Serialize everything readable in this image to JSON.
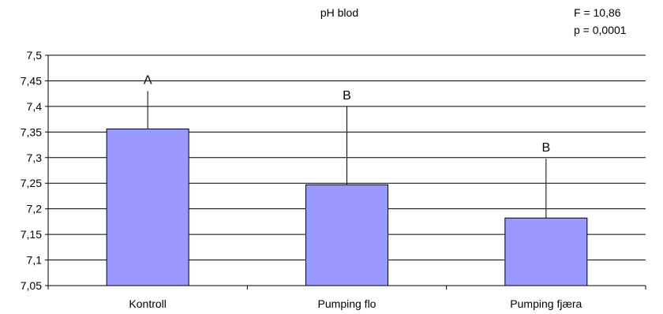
{
  "chart_data": {
    "type": "bar",
    "title": "pH blod",
    "categories": [
      "Kontroll",
      "Pumping flo",
      "Pumping fjæra"
    ],
    "values": [
      7.356,
      7.247,
      7.182
    ],
    "error_upper": [
      7.43,
      7.4,
      7.298
    ],
    "group_letters": [
      "A",
      "B",
      "B"
    ],
    "ylim": [
      7.05,
      7.5
    ],
    "yticks": [
      "7,05",
      "7,1",
      "7,15",
      "7,2",
      "7,25",
      "7,3",
      "7,35",
      "7,4",
      "7,45",
      "7,5"
    ],
    "ytick_values": [
      7.05,
      7.1,
      7.15,
      7.2,
      7.25,
      7.3,
      7.35,
      7.4,
      7.45,
      7.5
    ],
    "grid": true,
    "bar_color": "#9999ff",
    "annotations": {
      "f_stat": "F = 10,86",
      "p_value": "p = 0,0001"
    }
  }
}
